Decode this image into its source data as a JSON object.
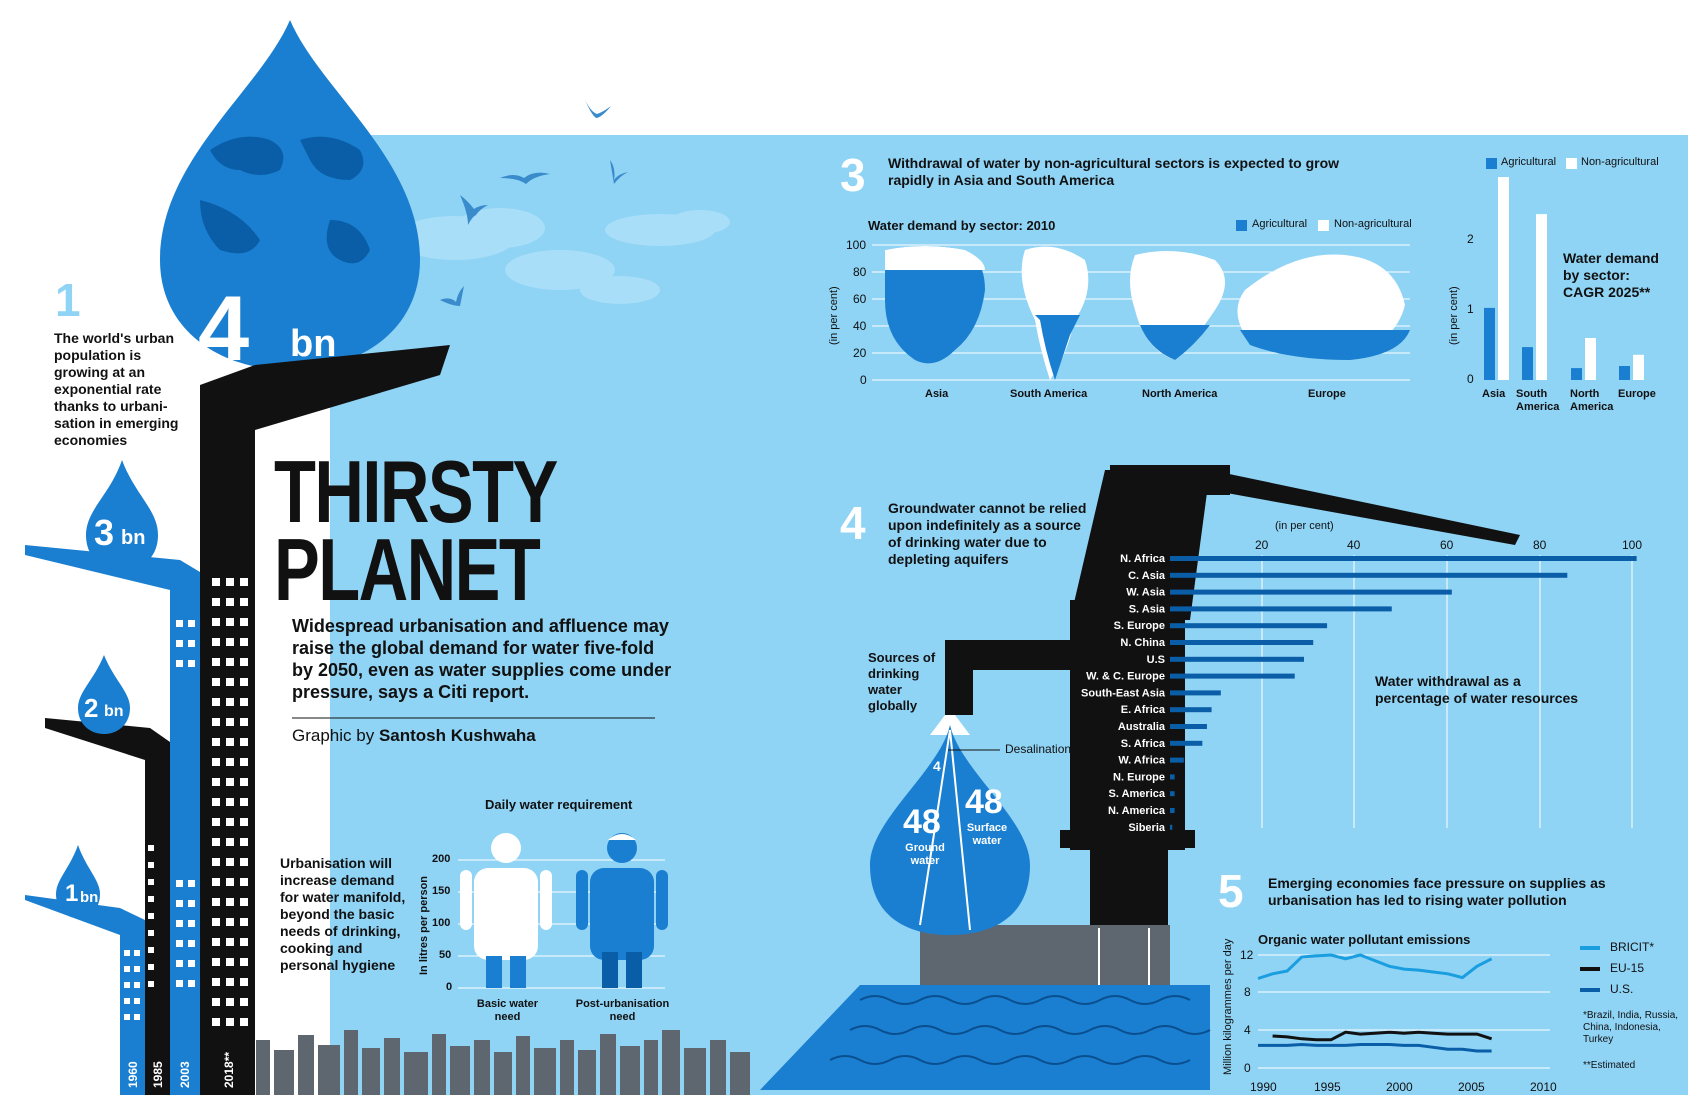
{
  "header": {
    "title_line1": "THIRSTY",
    "title_line2": "PLANET",
    "subtitle": "Widespread urbanisation and affluence may raise the global demand for water five-fold by 2050, even as water supplies come under pressure, says a Citi report.",
    "credit_prefix": "Graphic by",
    "credit_name": "Santosh Kushwaha"
  },
  "section1": {
    "number": "1",
    "text": "The world's urban population is growing at an exponential rate thanks to urbani-sation in emerging economies",
    "drops": [
      {
        "value": "1",
        "unit": "bn",
        "year": "1960"
      },
      {
        "value": "2",
        "unit": "bn",
        "year": "1985"
      },
      {
        "value": "3",
        "unit": "bn",
        "year": "2003"
      },
      {
        "value": "4",
        "unit": "bn",
        "year": "2018**"
      }
    ]
  },
  "section2": {
    "number": "2",
    "text": "Urbanisation will increase demand for water manifold, beyond the basic needs of drinking, cooking and personal hygiene",
    "chart_title": "Daily water requirement",
    "ylabel": "In litres per person",
    "yticks": [
      "200",
      "150",
      "100",
      "50",
      "0"
    ],
    "categories": [
      "Basic water need",
      "Post-urbanisation need"
    ]
  },
  "section3": {
    "number": "3",
    "title": "Withdrawal of water by non-agricultural sectors is expected to grow rapidly in Asia and South America",
    "map_chart_title": "Water demand by sector: 2010",
    "map_ylabel": "(in per cent)",
    "map_yticks": [
      "100",
      "80",
      "60",
      "40",
      "20",
      "0"
    ],
    "bar_chart_title": "Water demand by sector: CAGR 2025**",
    "bar_ylabel": "(in per cent)",
    "bar_yticks": [
      "2",
      "1",
      "0"
    ],
    "legend": {
      "agri": "Agricultural",
      "nonagri": "Non-agricultural"
    },
    "cagr_labels": [
      "Asia",
      "South America",
      "North America",
      "Europe"
    ]
  },
  "section4": {
    "number": "4",
    "title": "Groundwater cannot be relied upon indefinitely as a source of drinking water due to depleting aquifers",
    "axis_label": "(in per cent)",
    "chart_caption": "Water withdrawal as a percentage of water resources",
    "xticks": [
      "20",
      "40",
      "60",
      "80",
      "100"
    ],
    "sources_title": "Sources of drinking water globally",
    "desalination_label": "Desalination",
    "desalination_value": "4",
    "ground_value": "48",
    "ground_label": "Ground water",
    "surface_value": "48",
    "surface_label": "Surface water"
  },
  "section5": {
    "number": "5",
    "title": "Emerging economies face pressure on supplies as urbanisation has led to rising water pollution",
    "chart_title": "Organic water pollutant emissions",
    "ylabel": "Million kilogrammes per day",
    "yticks": [
      "12",
      "8",
      "4",
      "0"
    ],
    "xticks": [
      "1990",
      "1995",
      "2000",
      "2005",
      "2010"
    ],
    "footnote1": "*Brazil, India, Russia, China, Indonesia, Turkey",
    "footnote2": "**Estimated"
  },
  "colors": {
    "sky": "#8fd3f5",
    "blue": "#1a7fd0",
    "dark_blue": "#0a5ea8",
    "black": "#111111",
    "white": "#ffffff"
  },
  "chart_data": [
    {
      "type": "bar",
      "title": "Daily water requirement",
      "ylabel": "In litres per person",
      "categories": [
        "Basic water need",
        "Post-urbanisation need"
      ],
      "values": [
        50,
        200
      ],
      "ylim": [
        0,
        200
      ]
    },
    {
      "type": "bar",
      "title": "Water demand by sector: 2010",
      "ylabel": "(in per cent)",
      "categories": [
        "Asia",
        "South America",
        "North America",
        "Europe"
      ],
      "series": [
        {
          "name": "Agricultural",
          "values": [
            78,
            48,
            40,
            36
          ]
        },
        {
          "name": "Non-agricultural",
          "values": [
            22,
            52,
            60,
            64
          ]
        }
      ],
      "ylim": [
        0,
        100
      ],
      "stacked": true
    },
    {
      "type": "bar",
      "title": "Water demand by sector: CAGR 2025**",
      "ylabel": "(in per cent)",
      "categories": [
        "Asia",
        "South America",
        "North America",
        "Europe"
      ],
      "series": [
        {
          "name": "Agricultural",
          "values": [
            1.03,
            0.47,
            0.17,
            0.2
          ]
        },
        {
          "name": "Non-agricultural",
          "values": [
            2.9,
            2.37,
            0.6,
            0.36
          ]
        }
      ],
      "ylim": [
        0,
        3
      ]
    },
    {
      "type": "bar",
      "orientation": "horizontal",
      "title": "Water withdrawal as a percentage of water resources",
      "xlabel": "(in per cent)",
      "categories": [
        "N. Africa",
        "C. Asia",
        "W. Asia",
        "S. Asia",
        "S. Europe",
        "N. China",
        "U.S",
        "W. & C. Europe",
        "South-East Asia",
        "E. Africa",
        "Australia",
        "S. Africa",
        "W. Africa",
        "N. Europe",
        "S. America",
        "N. America",
        "Siberia"
      ],
      "values": [
        101,
        86,
        61,
        48,
        34,
        31,
        29,
        27,
        11,
        9,
        8,
        7,
        3,
        1,
        1,
        1,
        0.5
      ],
      "xlim": [
        0,
        100
      ]
    },
    {
      "type": "pie",
      "title": "Sources of drinking water globally",
      "categories": [
        "Ground water",
        "Surface water",
        "Desalination"
      ],
      "values": [
        48,
        48,
        4
      ]
    },
    {
      "type": "line",
      "title": "Organic water pollutant emissions",
      "ylabel": "Million kilogrammes per day",
      "ylim": [
        0,
        14
      ],
      "xlim": [
        1990,
        2010
      ],
      "series": [
        {
          "name": "BRICIT*",
          "x": [
            1990,
            1991,
            1992,
            1993,
            1994,
            1995,
            1996,
            1997,
            1998,
            1999,
            2000,
            2001,
            2002,
            2003,
            2004,
            2005,
            2006
          ],
          "y": [
            9.5,
            10,
            10.3,
            11.8,
            11.9,
            12,
            11.6,
            12,
            11.4,
            10.8,
            10.5,
            10.4,
            10.2,
            10,
            9.6,
            10.8,
            11.6
          ]
        },
        {
          "name": "EU-15",
          "x": [
            1991,
            1992,
            1993,
            1994,
            1995,
            1996,
            1997,
            1998,
            1999,
            2000,
            2001,
            2002,
            2003,
            2004,
            2005,
            2006
          ],
          "y": [
            3.4,
            3.3,
            3.1,
            3,
            3,
            3.8,
            3.6,
            3.7,
            3.8,
            3.7,
            3.8,
            3.7,
            3.6,
            3.6,
            3.6,
            3.1
          ]
        },
        {
          "name": "U.S.",
          "x": [
            1990,
            1991,
            1992,
            1993,
            1994,
            1995,
            1996,
            1997,
            1998,
            1999,
            2000,
            2001,
            2002,
            2003,
            2004,
            2005,
            2006
          ],
          "y": [
            2.4,
            2.4,
            2.4,
            2.5,
            2.4,
            2.4,
            2.4,
            2.5,
            2.5,
            2.5,
            2.4,
            2.4,
            2.2,
            2,
            2,
            1.8,
            1.8
          ]
        }
      ]
    }
  ]
}
